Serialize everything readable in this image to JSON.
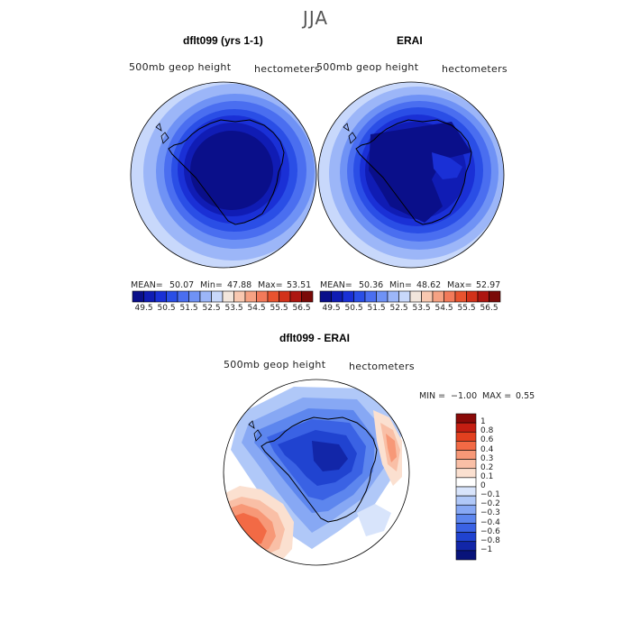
{
  "figure": {
    "title": "JJA"
  },
  "panels": [
    {
      "title": "dflt099 (yrs 1-1)",
      "field": "500mb geop height",
      "units": "hectometers",
      "stats": {
        "mean_label": "MEAN=",
        "mean": "50.07",
        "min_label": "Min=",
        "min": "47.88",
        "max_label": "Max=",
        "max": "53.51"
      }
    },
    {
      "title": "ERAI",
      "field": "500mb geop height",
      "units": "hectometers",
      "stats": {
        "mean_label": "MEAN=",
        "mean": "50.36",
        "min_label": "Min=",
        "min": "48.62",
        "max_label": "Max=",
        "max": "52.97"
      }
    },
    {
      "title": "dflt099 - ERAI",
      "field": "500mb geop height",
      "units": "hectometers",
      "stats": {
        "min_label": "MIN =",
        "min": "−1.00",
        "max_label": "MAX =",
        "max": "0.55"
      }
    }
  ],
  "colorbar_top": {
    "tick_labels": [
      "49.5",
      "50.5",
      "51.5",
      "52.5",
      "53.5",
      "54.5",
      "55.5",
      "56.5"
    ],
    "colors": [
      "#0a0f8a",
      "#101cb4",
      "#1a30d6",
      "#2a4ee6",
      "#4a6ef0",
      "#6f92f5",
      "#9cb6f8",
      "#c8d8fb",
      "#f2e6dc",
      "#f8c8b0",
      "#f6a283",
      "#f27a5a",
      "#e8532f",
      "#d2321a",
      "#ad1610",
      "#7a0a08"
    ]
  },
  "colorbar_diff": {
    "tick_labels": [
      "1",
      "0.8",
      "0.6",
      "0.4",
      "0.3",
      "0.2",
      "0.1",
      "0",
      "−0.1",
      "−0.2",
      "−0.3",
      "−0.4",
      "−0.6",
      "−0.8",
      "−1"
    ],
    "colors": [
      "#8a0a08",
      "#c41e12",
      "#e2401f",
      "#f26a45",
      "#f79877",
      "#f9bfa6",
      "#fbe0d0",
      "#ffffff",
      "#d8e4fb",
      "#b0c8f8",
      "#87a8f4",
      "#5d86ee",
      "#3a62e4",
      "#2043d0",
      "#1226a8",
      "#08137a"
    ]
  }
}
